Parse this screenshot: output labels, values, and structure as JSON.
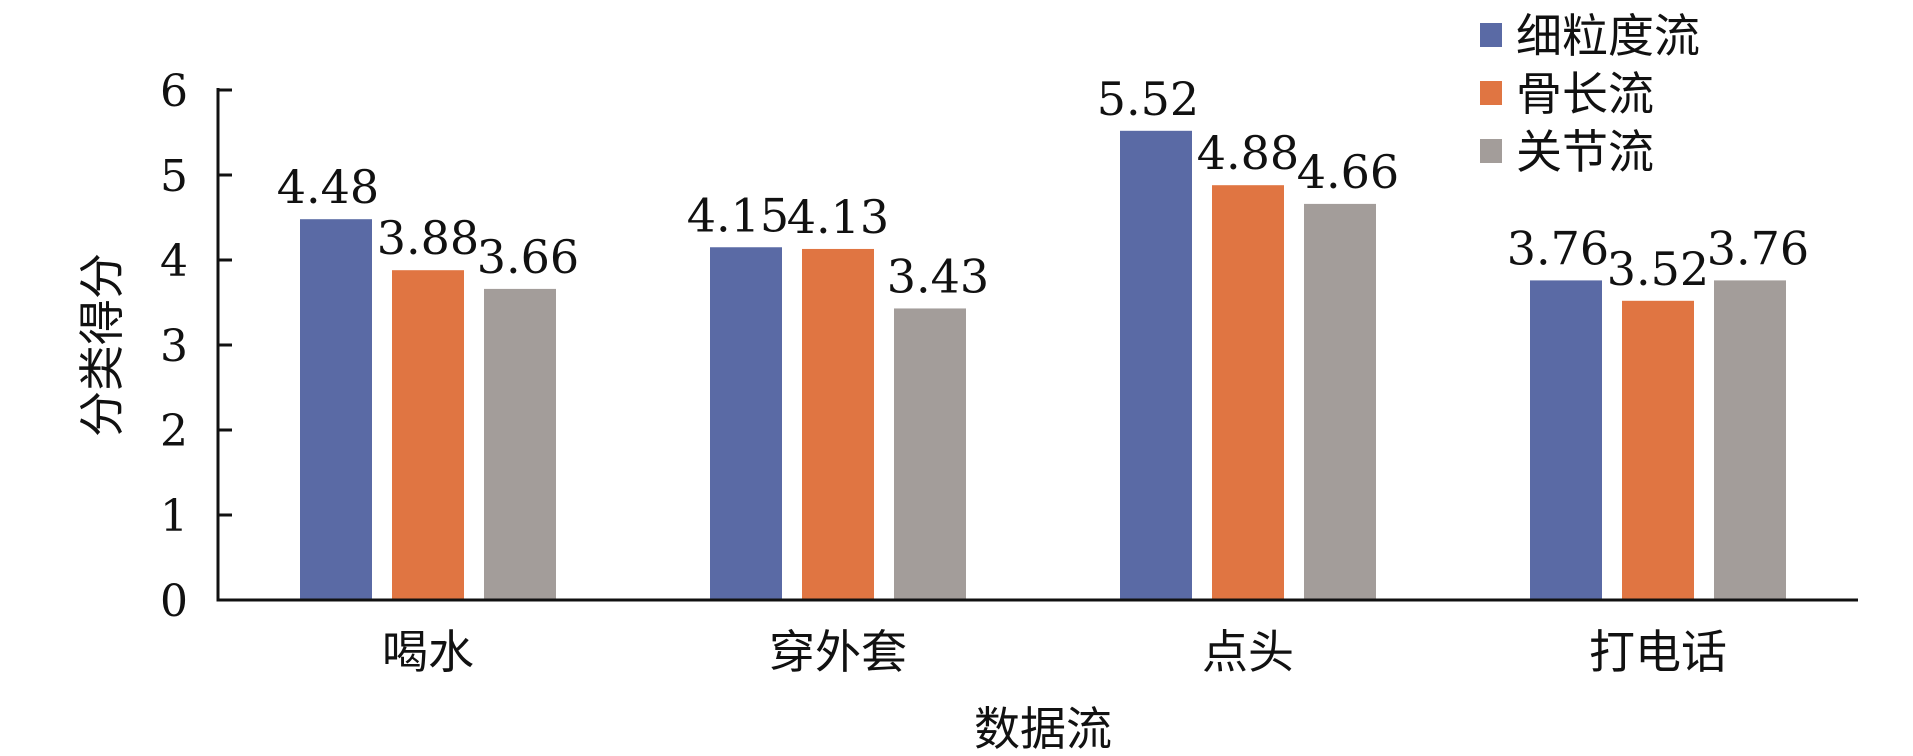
{
  "chart_data": {
    "type": "bar",
    "title": "",
    "xlabel": "数据流",
    "ylabel": "分类得分",
    "categories": [
      "喝水",
      "穿外套",
      "点头",
      "打电话"
    ],
    "series": [
      {
        "name": "细粒度流",
        "color": "#5a6aa5",
        "values": [
          4.48,
          4.15,
          5.52,
          3.76
        ]
      },
      {
        "name": "骨长流",
        "color": "#e07542",
        "values": [
          3.88,
          4.13,
          4.88,
          3.52
        ]
      },
      {
        "name": "关节流",
        "color": "#a39d9a",
        "values": [
          3.66,
          3.43,
          4.66,
          3.76
        ]
      }
    ],
    "value_labels": [
      [
        "4.48",
        "4.15",
        "5.52",
        "3.76"
      ],
      [
        "3.88",
        "4.13",
        "4.88",
        "3.52"
      ],
      [
        "3.66",
        "3.43",
        "4.66",
        "3.76"
      ]
    ],
    "ylim": [
      0,
      6
    ],
    "yticks": [
      "0",
      "1",
      "2",
      "3",
      "4",
      "5",
      "6"
    ],
    "grid": false,
    "legend_position": "top-right"
  }
}
